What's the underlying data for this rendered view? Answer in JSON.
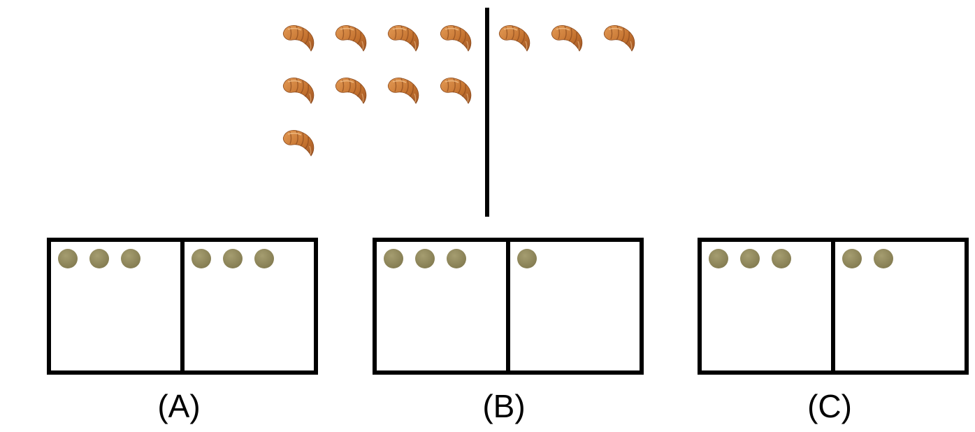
{
  "question": {
    "left_group_count": 9,
    "right_group_count": 3,
    "item_icon": "croissant-icon",
    "divider": "vertical-line"
  },
  "options": [
    {
      "label": "(A)",
      "left_cell_dots": 3,
      "right_cell_dots": 3
    },
    {
      "label": "(B)",
      "left_cell_dots": 3,
      "right_cell_dots": 1
    },
    {
      "label": "(C)",
      "left_cell_dots": 3,
      "right_cell_dots": 2
    }
  ],
  "colors": {
    "dot": "#8f875c",
    "croissant_body": "#c97a3a",
    "croissant_shadow": "#9c5425",
    "croissant_highlight": "#e8a766",
    "line": "#000000"
  }
}
